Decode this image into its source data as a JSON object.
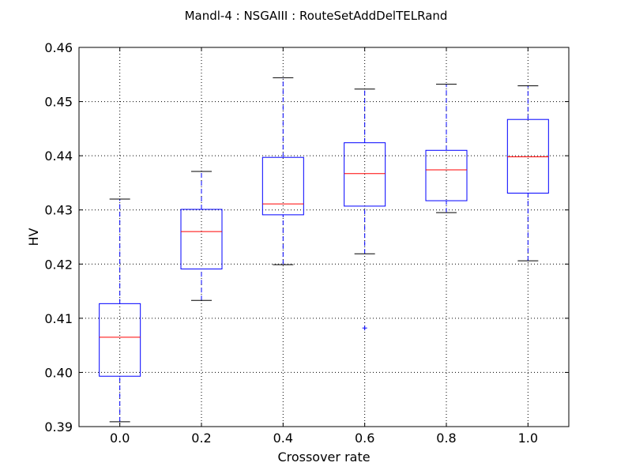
{
  "chart_data": {
    "type": "box",
    "title": "Mandl-4 : NSGAIII : RouteSetAddDelTELRand",
    "xlabel": "Crossover rate",
    "ylabel": "HV",
    "ylim": [
      0.39,
      0.46
    ],
    "yticks": [
      "0.39",
      "0.40",
      "0.41",
      "0.42",
      "0.43",
      "0.44",
      "0.45",
      "0.46"
    ],
    "grid": true,
    "categories": [
      "0.0",
      "0.2",
      "0.4",
      "0.6",
      "0.8",
      "1.0"
    ],
    "boxes": [
      {
        "x": "0.0",
        "whisker_low": 0.3909,
        "q1": 0.3993,
        "median": 0.4065,
        "q3": 0.4127,
        "whisker_high": 0.432,
        "outliers": []
      },
      {
        "x": "0.2",
        "whisker_low": 0.4133,
        "q1": 0.4191,
        "median": 0.426,
        "q3": 0.4301,
        "whisker_high": 0.4371,
        "outliers": []
      },
      {
        "x": "0.4",
        "whisker_low": 0.4199,
        "q1": 0.4291,
        "median": 0.4311,
        "q3": 0.4397,
        "whisker_high": 0.4544,
        "outliers": []
      },
      {
        "x": "0.6",
        "whisker_low": 0.4219,
        "q1": 0.4307,
        "median": 0.4367,
        "q3": 0.4424,
        "whisker_high": 0.4523,
        "outliers": [
          0.4082
        ]
      },
      {
        "x": "0.8",
        "whisker_low": 0.4295,
        "q1": 0.4317,
        "median": 0.4374,
        "q3": 0.441,
        "whisker_high": 0.4532,
        "outliers": []
      },
      {
        "x": "1.0",
        "whisker_low": 0.4206,
        "q1": 0.4331,
        "median": 0.4398,
        "q3": 0.4467,
        "whisker_high": 0.4529,
        "outliers": []
      }
    ],
    "colors": {
      "box": "#0000ff",
      "median": "#ff0000",
      "whisker": "#0000ff",
      "cap": "#000000",
      "grid": "#000000",
      "flier": "#0000ff"
    }
  }
}
